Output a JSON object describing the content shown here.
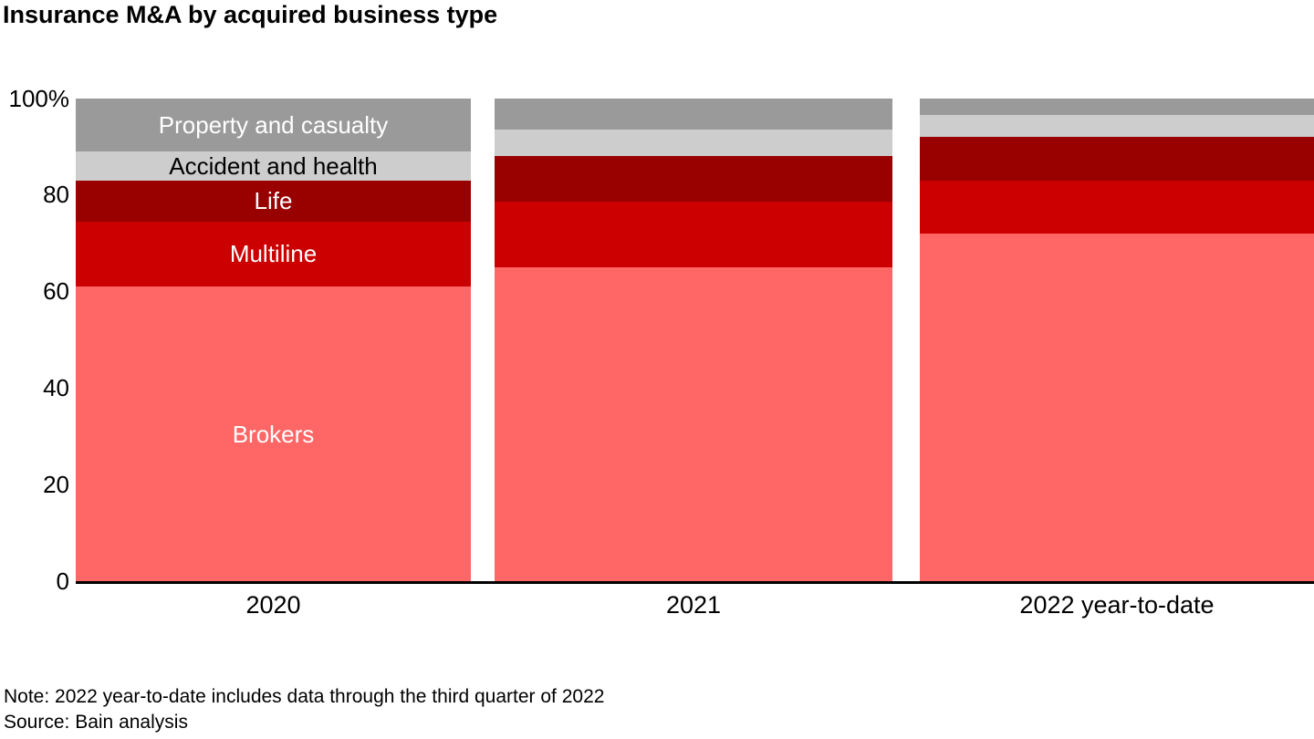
{
  "title": "Insurance M&A by acquired business type",
  "notes": {
    "note": "Note: 2022 year-to-date includes data through the third quarter of 2022",
    "source": "Source: Bain analysis"
  },
  "chart_data": {
    "type": "bar",
    "stacked": true,
    "percent_stacked": true,
    "title": "Insurance M&A by acquired business type",
    "categories": [
      "2020",
      "2021",
      "2022 year-to-date"
    ],
    "series": [
      {
        "name": "Brokers",
        "color": "#FF6666",
        "label_color": "#FFFFFF",
        "values": [
          61,
          65,
          72
        ]
      },
      {
        "name": "Multiline",
        "color": "#CC0000",
        "label_color": "#FFFFFF",
        "values": [
          13.5,
          13.5,
          11
        ]
      },
      {
        "name": "Life",
        "color": "#990000",
        "label_color": "#FFFFFF",
        "values": [
          8.5,
          9.5,
          9
        ]
      },
      {
        "name": "Accident and health",
        "color": "#CDCDCD",
        "label_color": "#000000",
        "values": [
          6,
          5.5,
          4.5
        ]
      },
      {
        "name": "Property and casualty",
        "color": "#9A9A9A",
        "label_color": "#FFFFFF",
        "values": [
          11,
          6.5,
          3.5
        ]
      }
    ],
    "ylim": [
      0,
      100
    ],
    "yaxis_ticks": [
      {
        "label": "100%",
        "value": 100
      },
      {
        "label": "80",
        "value": 80
      },
      {
        "label": "60",
        "value": 60
      },
      {
        "label": "40",
        "value": 40
      },
      {
        "label": "20",
        "value": 20
      },
      {
        "label": "0",
        "value": 0
      }
    ],
    "unit": "%",
    "grid": false,
    "legend": "labels-inside-first-bar",
    "labels_in_first_bar": true
  }
}
